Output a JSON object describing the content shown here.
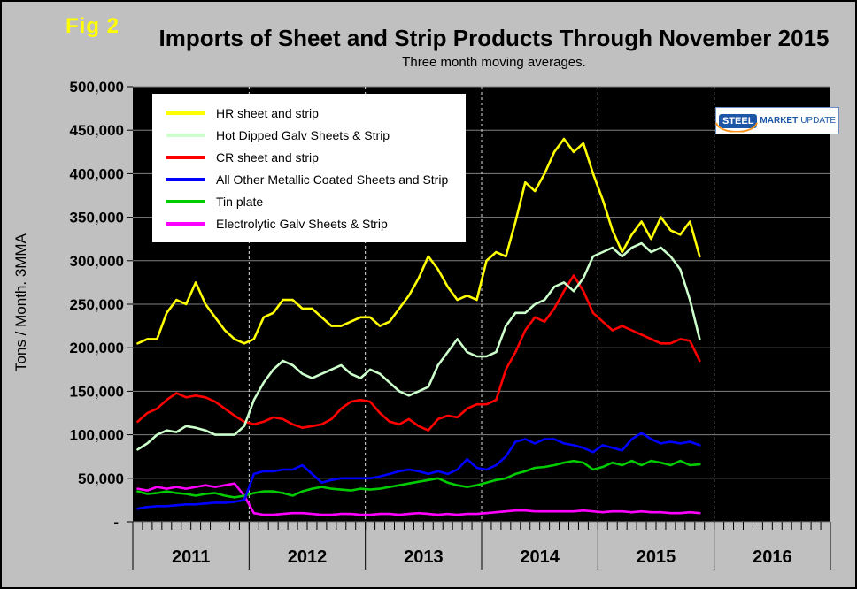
{
  "figure": {
    "fig_label": "Fig 2",
    "fig_label_color": "#ffff00",
    "background_color": "#c0c0c0"
  },
  "logo": {
    "steel": "STEEL",
    "market": "MARKET",
    "update": "UPDATE",
    "blue": "#1b57a6",
    "orange": "#f7941d"
  },
  "chart_data": {
    "type": "line",
    "title": "Imports of Sheet and Strip Products Through November 2015",
    "subtitle": "Three month moving averages.",
    "ylabel": "Tons / Month. 3MMA",
    "xlabel": "",
    "ylim": [
      0,
      500000
    ],
    "ytick_step": 50000,
    "zero_tick_label": "-",
    "x_years": [
      2011,
      2012,
      2013,
      2014,
      2015,
      2016
    ],
    "x_unit": "month",
    "x_range": [
      "2011-01",
      "2015-11"
    ],
    "grid": {
      "horizontal": true,
      "vertical_year_dashed": true
    },
    "legend_position": "top-left",
    "plot_background": "#000000",
    "grid_color": "#808080",
    "year_gridline_color": "#e0e0e0",
    "series": [
      {
        "name": "HR sheet and strip",
        "color": "#ffff00",
        "values": [
          205000,
          210000,
          210000,
          240000,
          255000,
          250000,
          275000,
          250000,
          235000,
          220000,
          210000,
          205000,
          210000,
          235000,
          240000,
          255000,
          255000,
          245000,
          245000,
          235000,
          225000,
          225000,
          230000,
          235000,
          235000,
          225000,
          230000,
          245000,
          260000,
          280000,
          305000,
          290000,
          270000,
          255000,
          260000,
          255000,
          300000,
          310000,
          305000,
          345000,
          390000,
          380000,
          400000,
          425000,
          440000,
          425000,
          435000,
          400000,
          370000,
          335000,
          310000,
          330000,
          345000,
          325000,
          350000,
          335000,
          330000,
          345000,
          305000
        ]
      },
      {
        "name": "Hot Dipped Galv Sheets & Strip",
        "color": "#ccffcc",
        "values": [
          83000,
          90000,
          100000,
          105000,
          103000,
          110000,
          108000,
          105000,
          100000,
          100000,
          100000,
          110000,
          140000,
          160000,
          175000,
          185000,
          180000,
          170000,
          165000,
          170000,
          175000,
          180000,
          170000,
          165000,
          175000,
          170000,
          160000,
          150000,
          145000,
          150000,
          155000,
          180000,
          195000,
          210000,
          195000,
          190000,
          190000,
          195000,
          225000,
          240000,
          240000,
          250000,
          255000,
          270000,
          275000,
          265000,
          280000,
          305000,
          310000,
          315000,
          305000,
          315000,
          320000,
          310000,
          315000,
          305000,
          290000,
          255000,
          210000
        ]
      },
      {
        "name": "CR sheet and strip",
        "color": "#ff0000",
        "values": [
          115000,
          125000,
          130000,
          140000,
          148000,
          143000,
          145000,
          143000,
          138000,
          130000,
          122000,
          115000,
          112000,
          115000,
          120000,
          118000,
          112000,
          108000,
          110000,
          112000,
          118000,
          130000,
          138000,
          140000,
          138000,
          125000,
          115000,
          112000,
          118000,
          110000,
          105000,
          118000,
          122000,
          120000,
          130000,
          135000,
          135000,
          140000,
          175000,
          195000,
          220000,
          235000,
          230000,
          245000,
          265000,
          283000,
          265000,
          240000,
          230000,
          220000,
          225000,
          220000,
          215000,
          210000,
          205000,
          205000,
          210000,
          208000,
          185000
        ]
      },
      {
        "name": "All Other Metallic Coated Sheets and Strip",
        "color": "#0000ff",
        "values": [
          15000,
          17000,
          18000,
          18000,
          19000,
          20000,
          20000,
          21000,
          22000,
          22000,
          23000,
          25000,
          55000,
          58000,
          58000,
          60000,
          60000,
          65000,
          55000,
          45000,
          48000,
          50000,
          50000,
          50000,
          50000,
          52000,
          55000,
          58000,
          60000,
          58000,
          55000,
          58000,
          55000,
          60000,
          72000,
          62000,
          60000,
          65000,
          75000,
          92000,
          95000,
          90000,
          95000,
          95000,
          90000,
          88000,
          85000,
          80000,
          88000,
          85000,
          82000,
          95000,
          102000,
          95000,
          90000,
          92000,
          90000,
          92000,
          88000
        ]
      },
      {
        "name": "Tin plate",
        "color": "#00cc00",
        "values": [
          35000,
          32000,
          33000,
          35000,
          33000,
          32000,
          30000,
          32000,
          33000,
          30000,
          28000,
          30000,
          33000,
          35000,
          35000,
          33000,
          30000,
          35000,
          38000,
          40000,
          38000,
          37000,
          36000,
          38000,
          37000,
          38000,
          40000,
          42000,
          44000,
          46000,
          48000,
          50000,
          45000,
          42000,
          40000,
          42000,
          45000,
          48000,
          50000,
          55000,
          58000,
          62000,
          63000,
          65000,
          68000,
          70000,
          68000,
          60000,
          63000,
          68000,
          65000,
          70000,
          65000,
          70000,
          68000,
          65000,
          70000,
          65000,
          66000
        ]
      },
      {
        "name": "Electrolytic Galv Sheets & Strip",
        "color": "#ff00ff",
        "values": [
          38000,
          36000,
          40000,
          38000,
          40000,
          38000,
          40000,
          42000,
          40000,
          42000,
          44000,
          30000,
          10000,
          8000,
          8000,
          9000,
          10000,
          10000,
          9000,
          8000,
          8000,
          9000,
          9000,
          8000,
          8000,
          9000,
          9000,
          8000,
          9000,
          10000,
          9000,
          8000,
          9000,
          8000,
          9000,
          9000,
          10000,
          11000,
          12000,
          13000,
          13000,
          12000,
          12000,
          12000,
          12000,
          12000,
          13000,
          12000,
          11000,
          12000,
          12000,
          11000,
          12000,
          11000,
          11000,
          10000,
          10000,
          11000,
          10000
        ]
      }
    ]
  }
}
